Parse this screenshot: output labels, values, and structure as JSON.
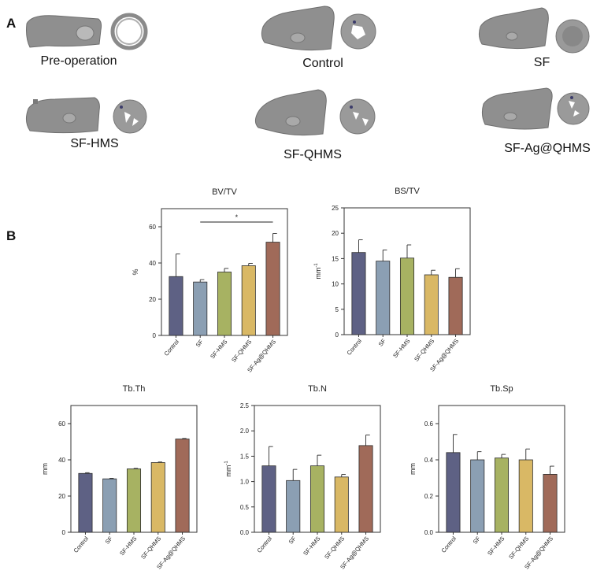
{
  "panel_a": {
    "letter": "A",
    "samples": [
      {
        "label": "Pre-operation"
      },
      {
        "label": "Control"
      },
      {
        "label": "SF"
      },
      {
        "label": "SF-HMS"
      },
      {
        "label": "SF-QHMS"
      },
      {
        "label": "SF-Ag@QHMS"
      }
    ]
  },
  "panel_b": {
    "letter": "B"
  },
  "colors": {
    "Control": "#5e6184",
    "SF": "#8b9fb3",
    "SF-HMS": "#a7b262",
    "SF-QHMS": "#d9b865",
    "SF-Ag@QHMS": "#a06a59"
  },
  "chart_data": [
    {
      "type": "bar",
      "title": "BV/TV",
      "ylabel": "%",
      "categories": [
        "Control",
        "SF",
        "SF-HMS",
        "SF-QHMS",
        "SF-Ag@QHMS"
      ],
      "values": [
        32.5,
        29.5,
        35,
        38.5,
        51.5
      ],
      "errors": [
        12.5,
        1.3,
        2.0,
        1.3,
        4.8
      ],
      "ylim": [
        0,
        70
      ],
      "yticks": [
        0,
        20,
        40,
        60
      ],
      "significance": {
        "from": 1,
        "to": 4,
        "label": "*"
      }
    },
    {
      "type": "bar",
      "title": "BS/TV",
      "ylabel": "mm-1",
      "ylabel_main": "mm",
      "ylabel_sup": "-1",
      "categories": [
        "Control",
        "SF",
        "SF-HMS",
        "SF-QHMS",
        "SF-Ag@QHMS"
      ],
      "values": [
        16.2,
        14.5,
        15.1,
        11.8,
        11.3
      ],
      "errors": [
        2.5,
        2.2,
        2.6,
        0.9,
        1.7
      ],
      "ylim": [
        0,
        25
      ],
      "yticks": [
        0,
        5,
        10,
        15,
        20,
        25
      ]
    },
    {
      "type": "bar",
      "title": "Tb.Th",
      "ylabel": "mm",
      "categories": [
        "Control",
        "SF",
        "SF-HMS",
        "SF-QHMS",
        "SF-Ag@QHMS"
      ],
      "values": [
        32.5,
        29.5,
        35,
        38.5,
        51.5
      ],
      "errors": [
        0.4,
        0.3,
        0.3,
        0.3,
        0.3
      ],
      "ylim": [
        0,
        70
      ],
      "yticks": [
        0,
        20,
        40,
        60
      ]
    },
    {
      "type": "bar",
      "title": "Tb.N",
      "ylabel": "mm-1",
      "ylabel_main": "mm",
      "ylabel_sup": "-1",
      "categories": [
        "Control",
        "SF",
        "SF-HMS",
        "SF-QHMS",
        "SF-Ag@QHMS"
      ],
      "values": [
        1.31,
        1.02,
        1.31,
        1.09,
        1.71
      ],
      "errors": [
        0.38,
        0.22,
        0.21,
        0.05,
        0.21
      ],
      "ylim": [
        0,
        2.5
      ],
      "yticks": [
        0.0,
        0.5,
        1.0,
        1.5,
        2.0,
        2.5
      ],
      "tick_decimals": 1
    },
    {
      "type": "bar",
      "title": "Tb.Sp",
      "ylabel": "mm",
      "categories": [
        "Control",
        "SF",
        "SF-HMS",
        "SF-QHMS",
        "SF-Ag@QHMS"
      ],
      "values": [
        0.44,
        0.4,
        0.41,
        0.4,
        0.32
      ],
      "errors": [
        0.1,
        0.045,
        0.02,
        0.06,
        0.045
      ],
      "ylim": [
        0,
        0.7
      ],
      "yticks": [
        0.0,
        0.2,
        0.4,
        0.6
      ],
      "tick_decimals": 1
    }
  ]
}
